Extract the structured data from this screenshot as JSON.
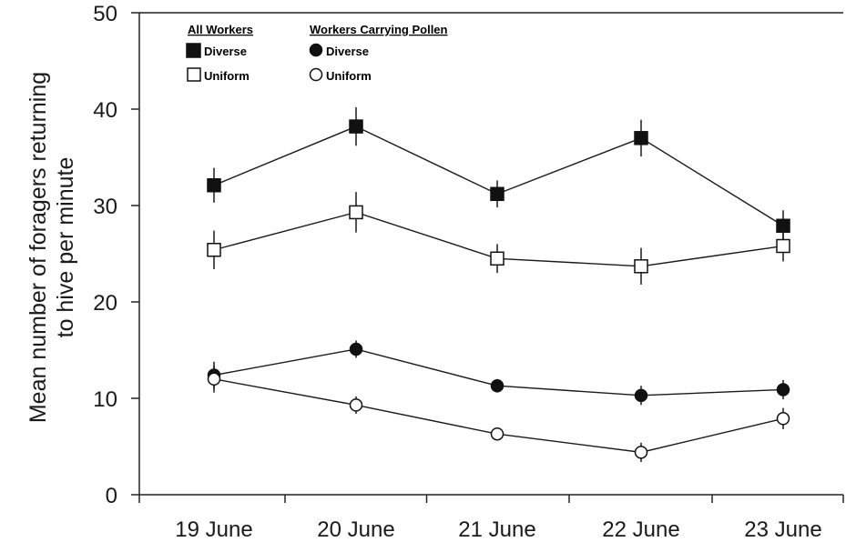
{
  "chart_data": {
    "type": "line",
    "categories": [
      "19 June",
      "20 June",
      "21 June",
      "22 June",
      "23 June"
    ],
    "ylabel_lines": [
      "Mean number of foragers returning",
      "to hive per minute"
    ],
    "ylim": [
      0,
      50
    ],
    "yticks": [
      0,
      10,
      20,
      30,
      40,
      50
    ],
    "grid": false,
    "legend_position": "top-left",
    "legend_groups": [
      {
        "title": "All Workers",
        "entries": [
          "Diverse",
          "Uniform"
        ]
      },
      {
        "title": "Workers Carrying Pollen",
        "entries": [
          "Diverse",
          "Uniform"
        ]
      }
    ],
    "series": [
      {
        "group": "All Workers",
        "name": "Diverse",
        "marker": "square",
        "fill": "#111111",
        "values": [
          32.1,
          38.2,
          31.2,
          37.0,
          27.9
        ],
        "errors": [
          1.8,
          2.0,
          1.4,
          1.9,
          1.6
        ]
      },
      {
        "group": "All Workers",
        "name": "Uniform",
        "marker": "square",
        "fill": "#ffffff",
        "values": [
          25.4,
          29.3,
          24.5,
          23.7,
          25.8
        ],
        "errors": [
          2.0,
          2.1,
          1.5,
          1.9,
          1.6
        ]
      },
      {
        "group": "Workers Carrying Pollen",
        "name": "Diverse",
        "marker": "circle",
        "fill": "#111111",
        "values": [
          12.4,
          15.1,
          11.3,
          10.3,
          10.9
        ],
        "errors": [
          1.4,
          0.9,
          0.7,
          1.0,
          1.0
        ]
      },
      {
        "group": "Workers Carrying Pollen",
        "name": "Uniform",
        "marker": "circle",
        "fill": "#ffffff",
        "values": [
          12.0,
          9.3,
          6.3,
          4.4,
          7.9
        ],
        "errors": [
          1.4,
          0.9,
          0.6,
          1.0,
          1.1
        ]
      }
    ]
  }
}
